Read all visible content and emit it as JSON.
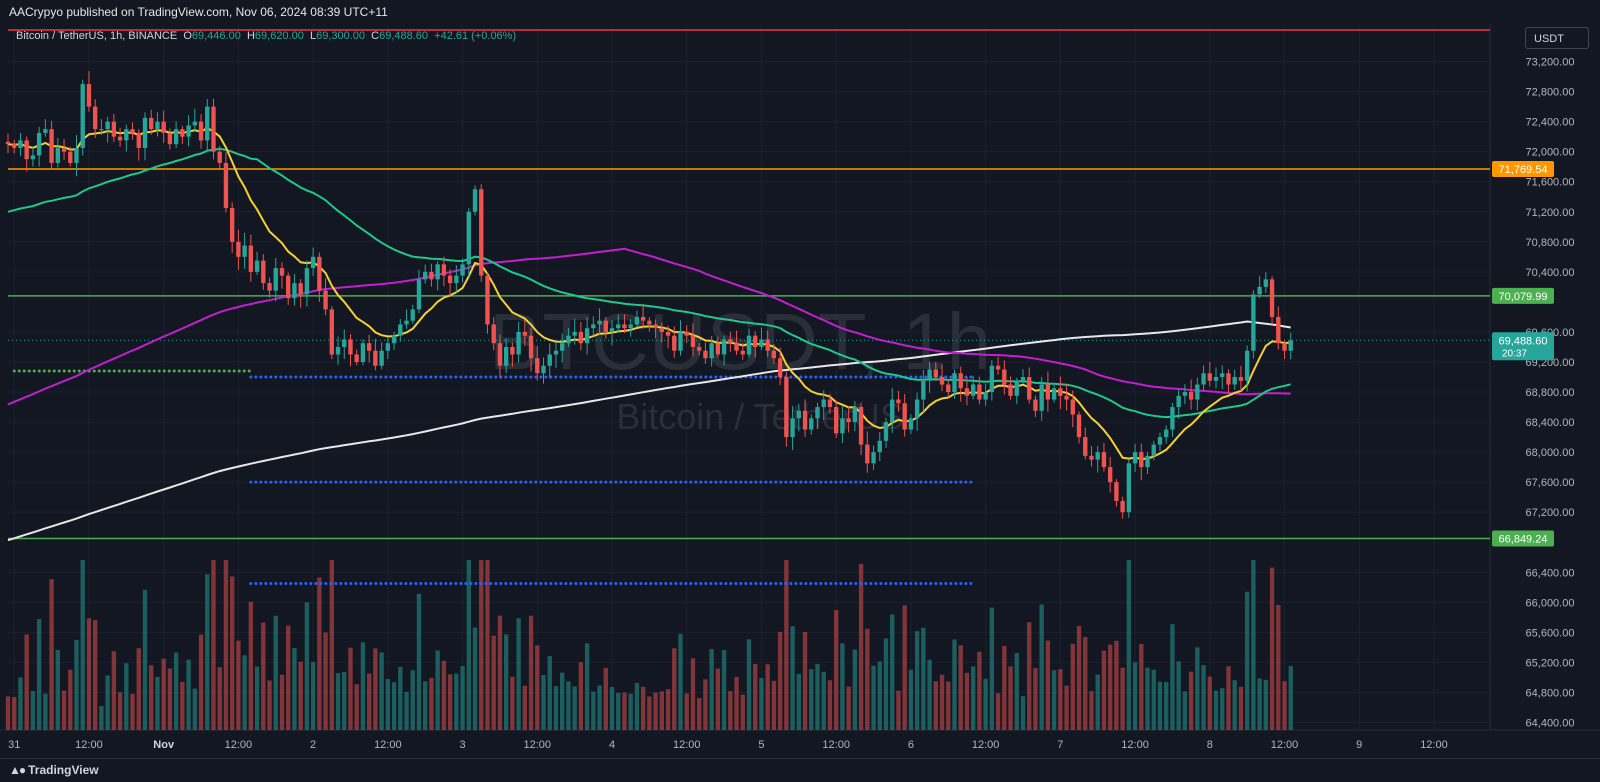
{
  "header": {
    "published": "AACrypyo published on TradingView.com, Nov 06, 2024 08:39 UTC+11"
  },
  "legend": {
    "symbol": "Bitcoin / TetherUS, 1h, BINANCE",
    "o_label": "O",
    "o_value": "69,446.00",
    "h_label": "H",
    "h_value": "69,620.00",
    "l_label": "L",
    "l_value": "69,300.00",
    "c_label": "C",
    "c_value": "69,488.60",
    "change": "+42.61 (+0.06%)"
  },
  "currency": "USDT",
  "watermark": {
    "ticker": "BTCUSDT, 1h",
    "name": "Bitcoin / TetherUS"
  },
  "footer": {
    "brand": "TradingView",
    "logo_icon": "tradingview-logo-icon"
  },
  "colors": {
    "background": "#131722",
    "up": "#26a69a",
    "down": "#ef5350",
    "orange_line": "#ff9800",
    "green_line": "#4caf50",
    "red_line": "#f23645",
    "ema_yellow": "#f5d033",
    "ema_green": "#1fc88c",
    "ma_magenta": "#c020d0",
    "ma_white": "#e8e8e8",
    "blue_dots": "#2962ff",
    "green_dots": "#4caf50"
  },
  "chart_data": {
    "type": "candlestick",
    "title": "Bitcoin / TetherUS, 1h, BINANCE",
    "ylim": [
      64300,
      73700
    ],
    "y_ticks": [
      "73,200.00",
      "72,800.00",
      "72,400.00",
      "72,000.00",
      "71,600.00",
      "71,200.00",
      "70,800.00",
      "70,400.00",
      "69,600.00",
      "69,200.00",
      "68,800.00",
      "68,400.00",
      "68,000.00",
      "67,600.00",
      "67,200.00",
      "66,400.00",
      "66,000.00",
      "65,600.00",
      "65,200.00",
      "64,800.00",
      "64,400.00"
    ],
    "y_tick_values": [
      73200,
      72800,
      72400,
      72000,
      71600,
      71200,
      70800,
      70400,
      69600,
      69200,
      68800,
      68400,
      68000,
      67600,
      67200,
      66400,
      66000,
      65600,
      65200,
      64800,
      64400
    ],
    "x_ticks": [
      {
        "label": "31",
        "hour": 0
      },
      {
        "label": "12:00",
        "hour": 12
      },
      {
        "label": "Nov",
        "hour": 24
      },
      {
        "label": "12:00",
        "hour": 36
      },
      {
        "label": "2",
        "hour": 48
      },
      {
        "label": "12:00",
        "hour": 60
      },
      {
        "label": "3",
        "hour": 72
      },
      {
        "label": "12:00",
        "hour": 84
      },
      {
        "label": "4",
        "hour": 96
      },
      {
        "label": "12:00",
        "hour": 108
      },
      {
        "label": "5",
        "hour": 120
      },
      {
        "label": "12:00",
        "hour": 132
      },
      {
        "label": "6",
        "hour": 144
      },
      {
        "label": "12:00",
        "hour": 156
      },
      {
        "label": "7",
        "hour": 168
      },
      {
        "label": "12:00",
        "hour": 180
      },
      {
        "label": "8",
        "hour": 192
      },
      {
        "label": "12:00",
        "hour": 204
      },
      {
        "label": "9",
        "hour": 216
      },
      {
        "label": "12:00",
        "hour": 228
      }
    ],
    "x_range_hours": [
      -1,
      237
    ],
    "horizontal_lines": [
      {
        "value": 73700,
        "color": "#f23645",
        "label": ""
      },
      {
        "value": 71769.54,
        "color": "#ff9800",
        "label": "71,769.54"
      },
      {
        "value": 70079.99,
        "color": "#4caf50",
        "label": "70,079.99"
      },
      {
        "value": 66849.24,
        "color": "#4caf50",
        "label": "66,849.24"
      }
    ],
    "last_price": {
      "value": 69488.6,
      "label": "69,488.60",
      "countdown": "20:37",
      "color": "#26a69a"
    },
    "dotted_levels": [
      {
        "value": 69000,
        "from": 38,
        "to": 154,
        "color": "#2962ff"
      },
      {
        "value": 67600,
        "from": 38,
        "to": 154,
        "color": "#2962ff"
      },
      {
        "value": 66250,
        "from": 38,
        "to": 154,
        "color": "#2962ff"
      },
      {
        "value": 69080,
        "from": 0,
        "to": 38,
        "color": "#4caf50"
      }
    ],
    "candles_hourly": {
      "start_hour": -1,
      "close": [
        72100,
        72050,
        72150,
        71900,
        71950,
        72250,
        72300,
        71850,
        72050,
        72000,
        71850,
        72050,
        72900,
        72600,
        72300,
        72300,
        72400,
        72200,
        72150,
        72300,
        72250,
        72050,
        72450,
        72300,
        72400,
        72250,
        72100,
        72300,
        72200,
        72350,
        72400,
        72150,
        72600,
        72000,
        71850,
        71250,
        70800,
        70600,
        70750,
        70400,
        70550,
        70250,
        70150,
        70450,
        70350,
        70050,
        70250,
        70100,
        70450,
        70600,
        70150,
        69900,
        69300,
        69400,
        69500,
        69300,
        69200,
        69450,
        69350,
        69150,
        69350,
        69450,
        69550,
        69700,
        69750,
        69900,
        70300,
        70400,
        70300,
        70500,
        70350,
        70250,
        70350,
        70500,
        71200,
        71500,
        70350,
        69700,
        69450,
        69150,
        69400,
        69300,
        69600,
        69550,
        69250,
        69050,
        69150,
        69300,
        69350,
        69450,
        69550,
        69600,
        69450,
        69650,
        69700,
        69750,
        69600,
        69650,
        69700,
        69650,
        69700,
        69800,
        69750,
        69700,
        69650,
        69600,
        69550,
        69350,
        69600,
        69550,
        69400,
        69350,
        69250,
        69450,
        69300,
        69500,
        69450,
        69350,
        69300,
        69550,
        69400,
        69500,
        69350,
        69250,
        69000,
        68200,
        68450,
        68550,
        68300,
        68450,
        68600,
        68700,
        68600,
        68250,
        68450,
        68400,
        68600,
        68100,
        67850,
        68000,
        68150,
        68400,
        68700,
        68650,
        68300,
        68450,
        68700,
        68950,
        69100,
        69000,
        68900,
        68800,
        69050,
        68850,
        68750,
        68900,
        68700,
        68800,
        69150,
        69100,
        68900,
        68750,
        68950,
        69000,
        68700,
        68550,
        68900,
        68700,
        68850,
        68750,
        68700,
        68500,
        68200,
        67950,
        67900,
        68000,
        67800,
        67600,
        67350,
        67200,
        67850,
        68000,
        67800,
        67950,
        68100,
        68200,
        68300,
        68600,
        68750,
        68800,
        68700,
        68900,
        69050,
        68950,
        69000,
        69050,
        68900,
        69000,
        68950,
        69350,
        70100,
        70200,
        70300,
        69800,
        69450,
        69350,
        69488.6
      ]
    },
    "note": "Hourly candle data reconstructed visually; 'Nov' hour index = 24; 12:00 ticks every 24h."
  }
}
